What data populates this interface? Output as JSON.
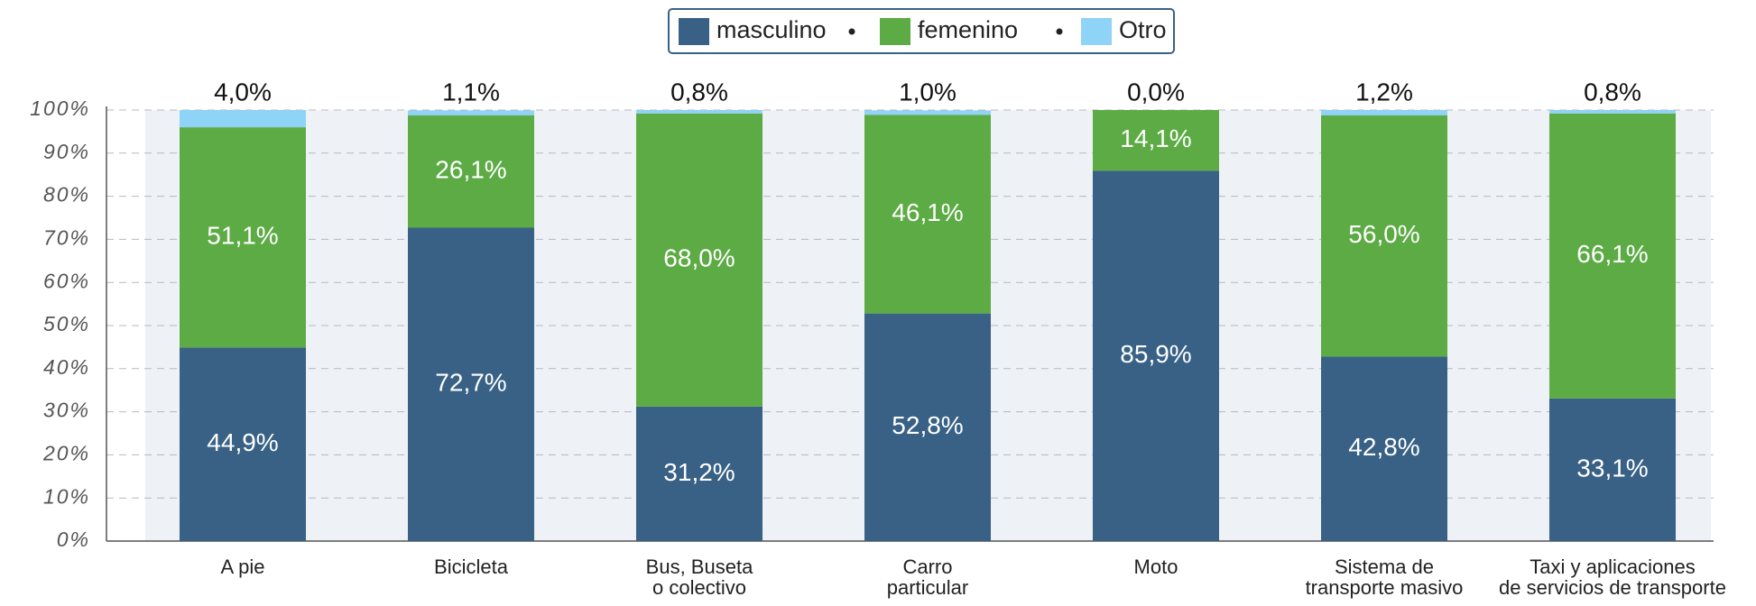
{
  "chart_data": {
    "type": "stacked_bar",
    "categories": [
      "A pie",
      "Bicicleta",
      "Bus, Buseta\no colectivo",
      "Carro\nparticular",
      "Moto",
      "Sistema de\ntransporte masivo",
      "Taxi y aplicaciones\nde servicios de transporte"
    ],
    "series": [
      {
        "name": "masculino",
        "color": "#386185",
        "values": [
          44.9,
          72.7,
          31.2,
          52.8,
          85.9,
          42.8,
          33.1
        ],
        "value_labels": [
          "44,9%",
          "72,7%",
          "31,2%",
          "52,8%",
          "85,9%",
          "42,8%",
          "33,1%"
        ]
      },
      {
        "name": "femenino",
        "color": "#5dab45",
        "values": [
          51.1,
          26.1,
          68.0,
          46.1,
          14.1,
          56.0,
          66.1
        ],
        "value_labels": [
          "51,1%",
          "26,1%",
          "68,0%",
          "46,1%",
          "14,1%",
          "56,0%",
          "66,1%"
        ]
      },
      {
        "name": "Otro",
        "color": "#8fd3f6",
        "values": [
          4.0,
          1.1,
          0.8,
          1.0,
          0.0,
          1.2,
          0.8
        ],
        "value_labels": [
          "4,0%",
          "1,1%",
          "0,8%",
          "1,0%",
          "0,0%",
          "1,2%",
          "0,8%"
        ]
      }
    ],
    "ylim": [
      0,
      100
    ],
    "yticks": [
      {
        "value": 0,
        "label": "0%"
      },
      {
        "value": 10,
        "label": "10%"
      },
      {
        "value": 20,
        "label": "20%"
      },
      {
        "value": 30,
        "label": "30%"
      },
      {
        "value": 40,
        "label": "40%"
      },
      {
        "value": 50,
        "label": "50%"
      },
      {
        "value": 60,
        "label": "60%"
      },
      {
        "value": 70,
        "label": "70%"
      },
      {
        "value": 80,
        "label": "80%"
      },
      {
        "value": 90,
        "label": "90%"
      },
      {
        "value": 100,
        "label": "100%"
      }
    ],
    "grid": true,
    "legend": "top"
  }
}
